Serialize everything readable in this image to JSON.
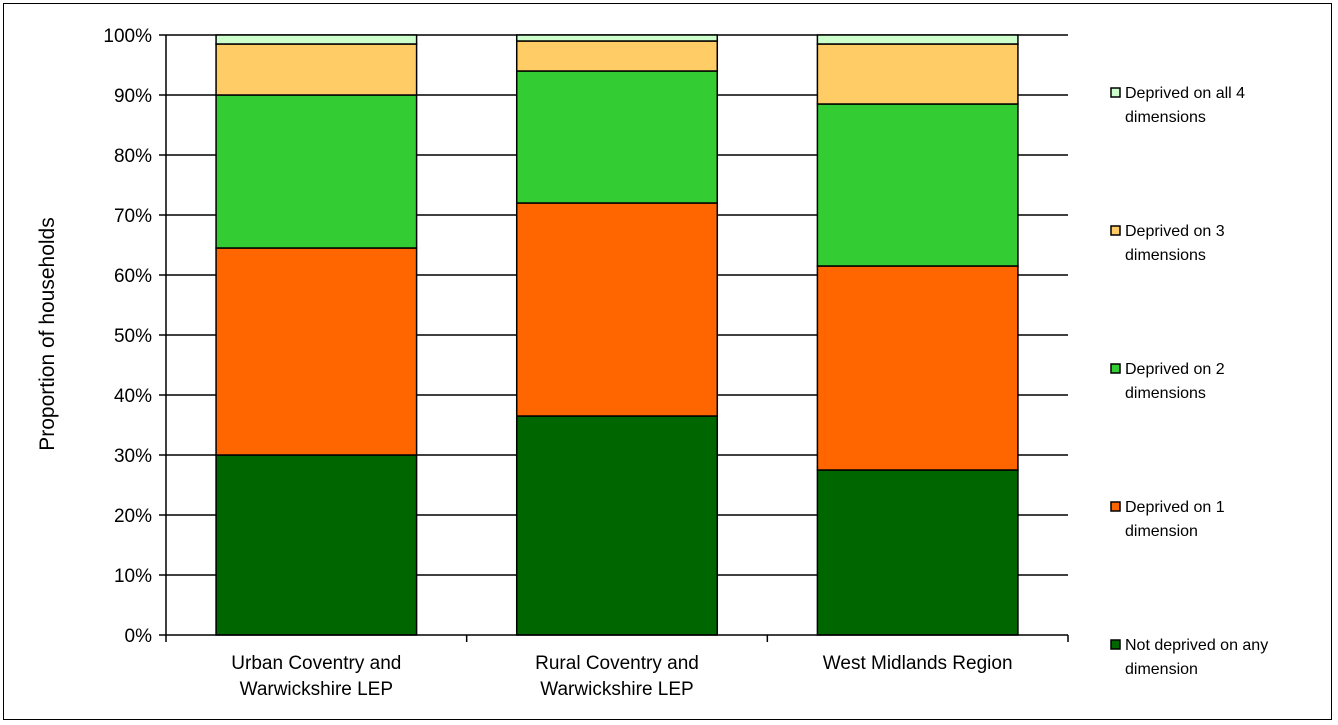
{
  "chart_data": {
    "type": "bar",
    "stacked": true,
    "percent_stacked": true,
    "title": "",
    "xlabel": "",
    "ylabel": "Proportion of households",
    "ylim": [
      0,
      100
    ],
    "y_ticks": [
      "0%",
      "10%",
      "20%",
      "30%",
      "40%",
      "50%",
      "60%",
      "70%",
      "80%",
      "90%",
      "100%"
    ],
    "grid": true,
    "legend_position": "right",
    "categories": [
      [
        "Urban Coventry and",
        "Warwickshire LEP"
      ],
      [
        "Rural Coventry and",
        "Warwickshire LEP"
      ],
      [
        "West Midlands Region"
      ]
    ],
    "series": [
      {
        "name": [
          "Not deprived on any",
          "dimension"
        ],
        "color": "#006600",
        "values": [
          30,
          36.5,
          27.5
        ]
      },
      {
        "name": [
          "Deprived on 1",
          "dimension"
        ],
        "color": "#FF6600",
        "values": [
          34.5,
          35.5,
          34
        ]
      },
      {
        "name": [
          "Deprived on 2",
          "dimensions"
        ],
        "color": "#33CC33",
        "values": [
          25.5,
          22,
          27
        ]
      },
      {
        "name": [
          "Deprived on 3",
          "dimensions"
        ],
        "color": "#FFCC66",
        "values": [
          8.5,
          5,
          10
        ]
      },
      {
        "name": [
          "Deprived on all 4",
          "dimensions"
        ],
        "color": "#CCFFCC",
        "values": [
          1.5,
          1,
          1.5
        ]
      }
    ]
  }
}
